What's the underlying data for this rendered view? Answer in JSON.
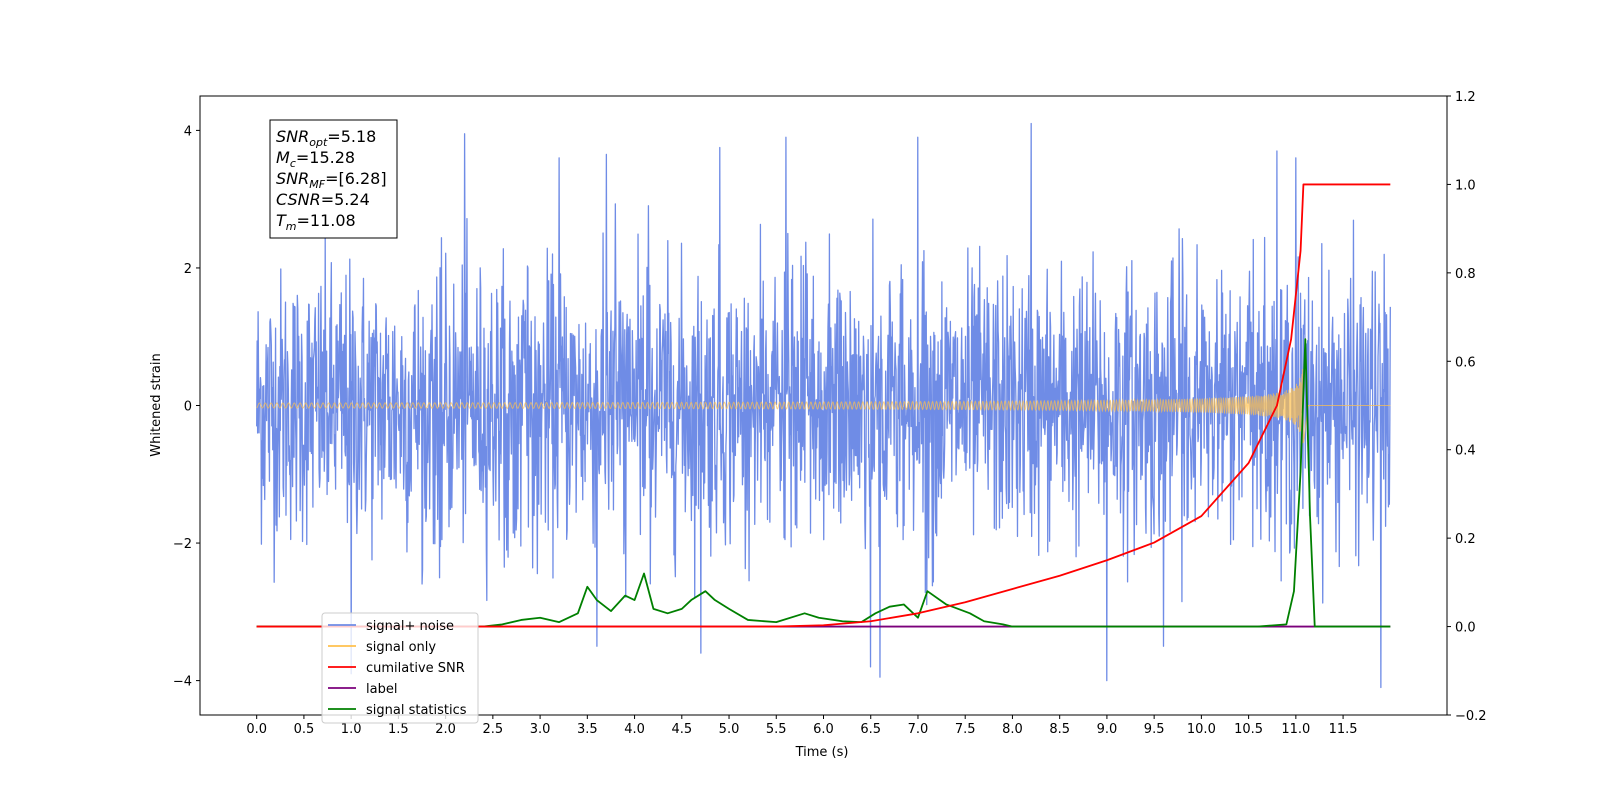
{
  "chart_data": {
    "type": "line",
    "xlabel": "Time (s)",
    "ylabel": "Whitened strain",
    "x_range": [
      -0.6,
      12.6
    ],
    "y_left_range": [
      -4.5,
      4.5
    ],
    "y_right_range": [
      -0.2,
      1.2
    ],
    "x_ticks": [
      "0.0",
      "0.5",
      "1.0",
      "1.5",
      "2.0",
      "2.5",
      "3.0",
      "3.5",
      "4.0",
      "4.5",
      "5.0",
      "5.5",
      "6.0",
      "6.5",
      "7.0",
      "7.5",
      "8.0",
      "8.5",
      "9.0",
      "9.5",
      "10.0",
      "10.5",
      "11.0",
      "11.5"
    ],
    "y_left_ticks": [
      "−4",
      "−2",
      "0",
      "2",
      "4"
    ],
    "y_right_ticks": [
      "−0.2",
      "0.0",
      "0.2",
      "0.4",
      "0.6",
      "0.8",
      "1.0",
      "1.2"
    ],
    "info_box": [
      {
        "sym": "SNR",
        "sub": "opt",
        "rest": "=5.18"
      },
      {
        "sym": "M",
        "sub": "c",
        "rest": "=15.28"
      },
      {
        "sym": "SNR",
        "sub": "MF",
        "rest": "=[6.28]"
      },
      {
        "sym": "CSNR",
        "sub": "",
        "rest": "=5.24"
      },
      {
        "sym": "T",
        "sub": "m",
        "rest": "=11.08"
      }
    ],
    "legend": {
      "placement": "lower-left",
      "entries": [
        {
          "label": "signal+ noise",
          "color": "#6f8ce6"
        },
        {
          "label": "signal only",
          "color": "#ffc04d"
        },
        {
          "label": "cumilative SNR",
          "color": "#ff0000"
        },
        {
          "label": "label",
          "color": "#7b007b"
        },
        {
          "label": "signal statistics",
          "color": "#008000"
        }
      ]
    },
    "series": [
      {
        "name": "signal+ noise",
        "axis": "left",
        "color": "#6f8ce6",
        "x_start": 0.0,
        "x_end": 12.0,
        "typical_envelope": [
          -2.3,
          2.4
        ],
        "peaks": [
          {
            "x": 2.2,
            "y": 3.95
          },
          {
            "x": 3.2,
            "y": 3.6
          },
          {
            "x": 3.7,
            "y": 3.65
          },
          {
            "x": 4.9,
            "y": 3.75
          },
          {
            "x": 5.6,
            "y": 3.9
          },
          {
            "x": 7.0,
            "y": 3.9
          },
          {
            "x": 8.2,
            "y": 4.1
          },
          {
            "x": 10.8,
            "y": 3.7
          },
          {
            "x": 11.0,
            "y": 3.6
          },
          {
            "x": 11.9,
            "y": 3.3
          },
          {
            "x": 1.0,
            "y": -3.9
          },
          {
            "x": 3.6,
            "y": -3.5
          },
          {
            "x": 4.7,
            "y": -3.6
          },
          {
            "x": 6.5,
            "y": -3.8
          },
          {
            "x": 6.6,
            "y": -3.95
          },
          {
            "x": 9.0,
            "y": -4.0
          },
          {
            "x": 9.6,
            "y": -3.5
          },
          {
            "x": 11.9,
            "y": -4.1
          }
        ]
      },
      {
        "name": "signal only",
        "axis": "left",
        "color": "#ffc04d",
        "x_start": 0.0,
        "x_end": 12.0,
        "merger_time": 11.08,
        "peak_amplitude": 0.95
      },
      {
        "name": "cumilative SNR",
        "axis": "right",
        "color": "#ff0000",
        "x": [
          0.0,
          5.5,
          6.0,
          6.5,
          7.0,
          7.5,
          8.0,
          8.5,
          9.0,
          9.5,
          10.0,
          10.5,
          10.8,
          10.95,
          11.05,
          11.08,
          12.0
        ],
        "y": [
          0.0,
          0.0,
          0.003,
          0.012,
          0.03,
          0.055,
          0.085,
          0.115,
          0.15,
          0.19,
          0.25,
          0.37,
          0.5,
          0.65,
          0.85,
          1.0,
          1.0
        ]
      },
      {
        "name": "label",
        "axis": "right",
        "color": "#7b007b",
        "x": [
          0.0,
          11.0,
          11.1,
          12.0
        ],
        "y": [
          0.0,
          0.0,
          0.0,
          0.0
        ]
      },
      {
        "name": "signal statistics",
        "axis": "right",
        "color": "#008000",
        "x": [
          0.0,
          2.4,
          2.6,
          2.8,
          3.0,
          3.2,
          3.4,
          3.5,
          3.6,
          3.75,
          3.9,
          4.0,
          4.1,
          4.2,
          4.35,
          4.5,
          4.6,
          4.75,
          4.85,
          5.0,
          5.2,
          5.5,
          5.8,
          5.95,
          6.2,
          6.4,
          6.55,
          6.7,
          6.85,
          7.0,
          7.1,
          7.3,
          7.55,
          7.7,
          7.9,
          8.0,
          10.6,
          10.9,
          10.98,
          11.05,
          11.1,
          11.15,
          11.2,
          11.3,
          12.0
        ],
        "y": [
          0.0,
          0.0,
          0.005,
          0.015,
          0.02,
          0.01,
          0.03,
          0.09,
          0.06,
          0.035,
          0.07,
          0.06,
          0.12,
          0.04,
          0.03,
          0.04,
          0.06,
          0.08,
          0.06,
          0.04,
          0.015,
          0.01,
          0.03,
          0.02,
          0.012,
          0.01,
          0.03,
          0.045,
          0.05,
          0.02,
          0.08,
          0.05,
          0.03,
          0.012,
          0.005,
          0.0,
          0.0,
          0.005,
          0.08,
          0.35,
          0.65,
          0.25,
          0.0,
          0.0,
          0.0
        ]
      }
    ]
  }
}
